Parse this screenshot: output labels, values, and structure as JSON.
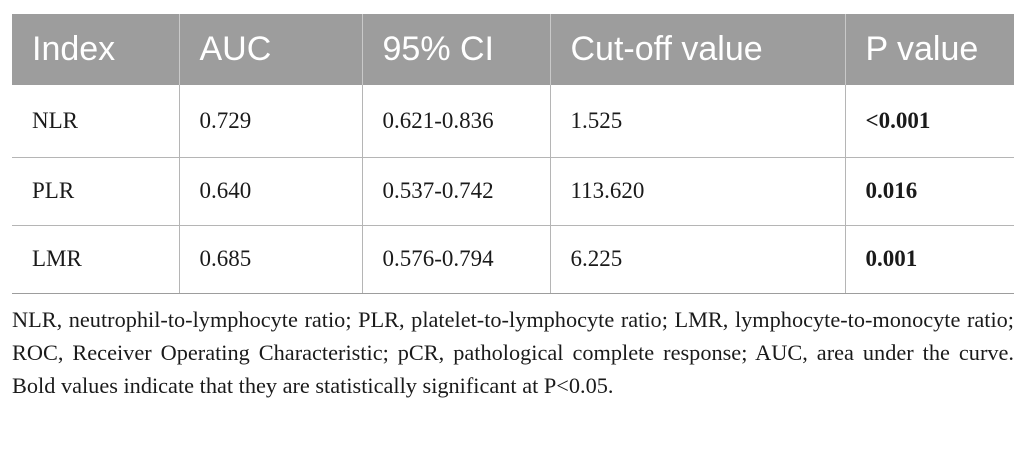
{
  "table": {
    "headers": [
      "Index",
      "AUC",
      "95% CI",
      "Cut-off value",
      "P value"
    ],
    "rows": [
      {
        "index": "NLR",
        "auc": "0.729",
        "ci": "0.621-0.836",
        "cutoff": "1.525",
        "p": "<0.001"
      },
      {
        "index": "PLR",
        "auc": "0.640",
        "ci": "0.537-0.742",
        "cutoff": "113.620",
        "p": "0.016"
      },
      {
        "index": "LMR",
        "auc": "0.685",
        "ci": "0.576-0.794",
        "cutoff": "6.225",
        "p": "0.001"
      }
    ]
  },
  "footnote": "NLR, neutrophil-to-lymphocyte ratio; PLR, platelet-to-lymphocyte ratio; LMR, lymphocyte-to-monocyte ratio; ROC, Receiver Operating Characteristic; pCR, pathological complete response; AUC, area under the curve. Bold values indicate that they are statistically significant at P<0.05.",
  "colors": {
    "header_bg": "#9d9d9d",
    "header_text": "#ffffff",
    "rule": "#b5b5b5"
  }
}
